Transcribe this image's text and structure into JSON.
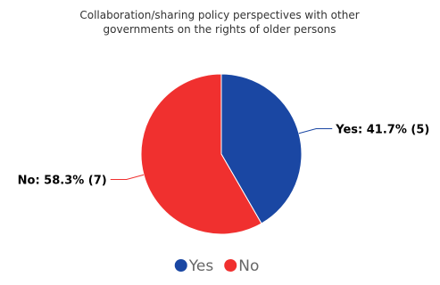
{
  "chart_data": {
    "type": "pie",
    "title_lines": [
      "Collaboration/sharing policy perspectives with other",
      "governments on the rights of older persons"
    ],
    "slices": [
      {
        "name": "Yes",
        "value": 5,
        "percent": 41.7,
        "label": "Yes: 41.7% (5)",
        "color": "#1a47a3"
      },
      {
        "name": "No",
        "value": 7,
        "percent": 58.3,
        "label": "No: 58.3% (7)",
        "color": "#f0302f"
      }
    ],
    "legend": {
      "placement": "bottom",
      "items": [
        "Yes",
        "No"
      ]
    }
  }
}
